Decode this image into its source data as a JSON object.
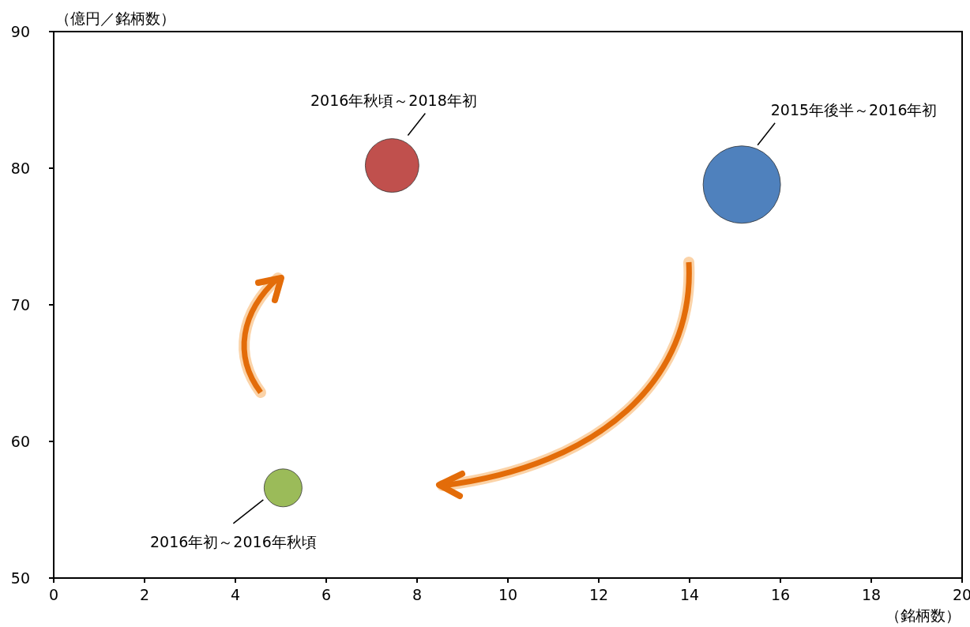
{
  "chart_data": {
    "type": "bubble",
    "ylabel": "（億円／銘柄数）",
    "xlabel": "（銘柄数）",
    "x": [
      15.15,
      7.45,
      5.05
    ],
    "values": [
      78.8,
      80.2,
      56.6
    ],
    "sizes": [
      1,
      0.48,
      0.24
    ],
    "colors": [
      "#4f81bd",
      "#c0504d",
      "#9bbb59"
    ],
    "xlim": [
      0,
      20
    ],
    "xticks": [
      0,
      2,
      4,
      6,
      8,
      10,
      12,
      14,
      16,
      18,
      20
    ],
    "ylim": [
      50,
      90
    ],
    "yticks": [
      50,
      60,
      70,
      80,
      90
    ],
    "annotations": [
      "2015年後半～2016年初",
      "2016年秋頃～2018年初",
      "2016年初～2016年秋頃"
    ]
  }
}
